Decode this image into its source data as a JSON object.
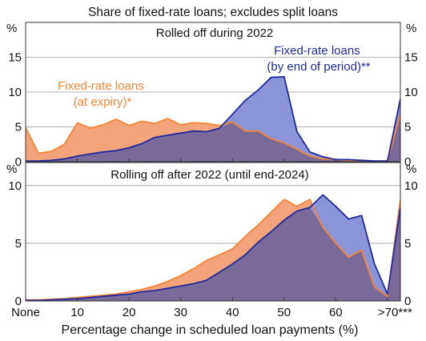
{
  "colors": {
    "fixed_at_expiry": "#f58535",
    "fixed_by_end": "#1f2a9f",
    "orange_fill": "#f4a47a",
    "blue_fill": "#8b93d9",
    "overlap_fill": "#7a6a99",
    "frame": "#333333",
    "grid": "#999999"
  },
  "chart_data": {
    "type": "area",
    "title": "Share of fixed-rate loans; excludes split loans",
    "xlabel": "Percentage change in scheduled loan payments (%)",
    "ylabel_left": "%",
    "ylabel_right": "%",
    "x": [
      0,
      2.5,
      5,
      7.5,
      10,
      12.5,
      15,
      17.5,
      20,
      22.5,
      25,
      27.5,
      30,
      32.5,
      35,
      37.5,
      40,
      42.5,
      45,
      47.5,
      50,
      52.5,
      55,
      57.5,
      60,
      62.5,
      65,
      67.5,
      70,
      72.5
    ],
    "x_tick_values": [
      0,
      10,
      20,
      30,
      40,
      50,
      60,
      70
    ],
    "x_tick_labels": [
      "None",
      "10",
      "20",
      "30",
      "40",
      "50",
      "60",
      ">70***"
    ],
    "panels": [
      {
        "subtitle": "Rolled off during 2022",
        "ylim": [
          0,
          20
        ],
        "yticks": [
          0,
          5,
          10,
          15
        ],
        "series": [
          {
            "name": "Fixed-rate loans (at expiry)*",
            "label_lines": [
              "Fixed-rate loans",
              "(at expiry)*"
            ],
            "values": [
              4.9,
              1.2,
              1.5,
              2.5,
              5.6,
              4.8,
              5.3,
              6.1,
              5.2,
              5.8,
              5.5,
              6.2,
              5.3,
              5.6,
              5.5,
              5.2,
              5.7,
              4.4,
              4.4,
              3.3,
              2.7,
              1.8,
              0.8,
              0.4,
              0.3,
              0.2,
              0.2,
              0.1,
              0.1,
              6.8
            ]
          },
          {
            "name": "Fixed-rate loans (by end of period)**",
            "label_lines": [
              "Fixed-rate loans",
              "(by end of period)**"
            ],
            "values": [
              0.1,
              0.1,
              0.2,
              0.4,
              0.8,
              1.1,
              1.4,
              1.6,
              2.0,
              2.6,
              3.5,
              3.8,
              4.1,
              4.4,
              4.3,
              4.8,
              6.8,
              8.8,
              10.3,
              12.1,
              12.2,
              4.3,
              1.4,
              0.7,
              0.3,
              0.3,
              0.2,
              0.1,
              0.1,
              9.0
            ]
          }
        ]
      },
      {
        "subtitle": "Rolling off after 2022 (until end-2024)",
        "ylim": [
          0,
          12
        ],
        "yticks": [
          0,
          5,
          10
        ],
        "series": [
          {
            "name": "Fixed-rate loans (at expiry)*",
            "values": [
              0.1,
              0.1,
              0.15,
              0.2,
              0.3,
              0.4,
              0.5,
              0.6,
              0.8,
              1.0,
              1.3,
              1.7,
              2.2,
              2.8,
              3.5,
              4.0,
              4.5,
              5.6,
              6.6,
              7.7,
              8.8,
              8.2,
              8.8,
              6.4,
              5.0,
              3.8,
              4.4,
              1.2,
              0.4,
              8.8
            ]
          },
          {
            "name": "Fixed-rate loans (by end of period)**",
            "values": [
              0.05,
              0.05,
              0.1,
              0.15,
              0.2,
              0.3,
              0.4,
              0.5,
              0.6,
              0.8,
              0.9,
              1.1,
              1.3,
              1.5,
              1.8,
              2.5,
              3.2,
              4.0,
              5.1,
              6.0,
              7.0,
              7.8,
              8.1,
              9.2,
              8.2,
              7.1,
              7.4,
              3.2,
              0.6,
              8.1
            ]
          }
        ]
      }
    ]
  }
}
